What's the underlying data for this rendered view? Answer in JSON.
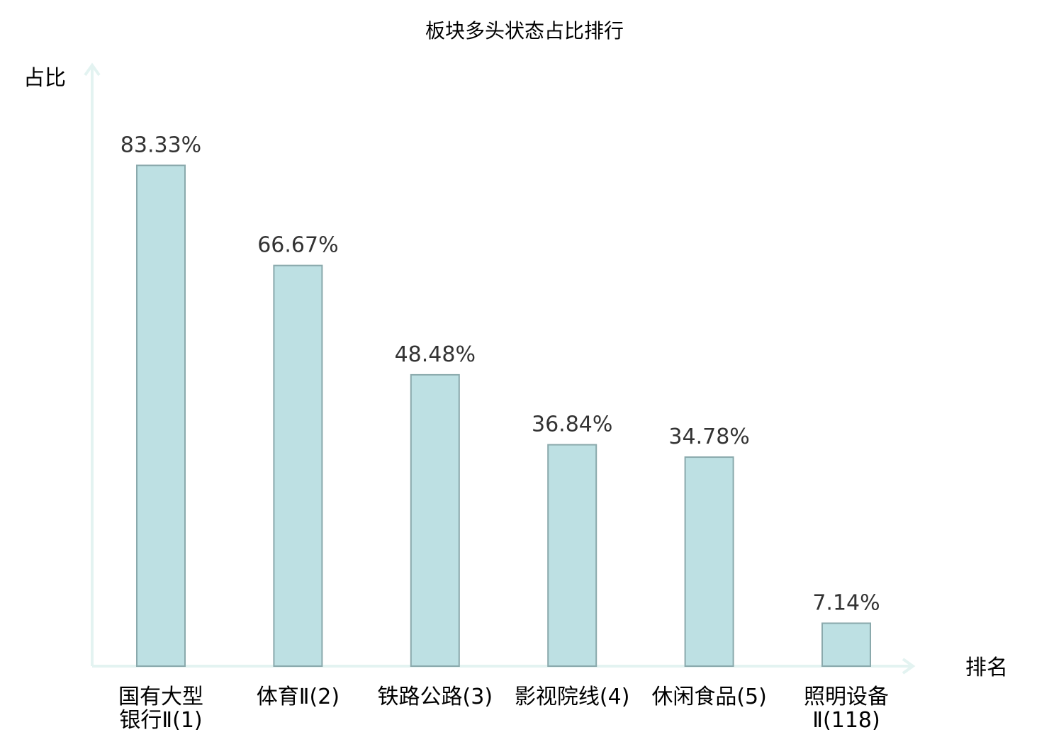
{
  "chart_data": {
    "type": "bar",
    "title": "板块多头状态占比排行",
    "ylabel": "占比",
    "xlabel": "排名",
    "ylim": [
      0,
      100
    ],
    "grid": false,
    "categories": [
      [
        "国有大型",
        "银行Ⅱ(1)"
      ],
      [
        "体育Ⅱ(2)"
      ],
      [
        "铁路公路(3)"
      ],
      [
        "影视院线(4)"
      ],
      [
        "休闲食品(5)"
      ],
      [
        "照明设备",
        "Ⅱ(118)"
      ]
    ],
    "values": [
      83.33,
      66.67,
      48.48,
      36.84,
      34.78,
      7.14
    ],
    "value_labels": [
      "83.33%",
      "66.67%",
      "48.48%",
      "36.84%",
      "34.78%",
      "7.14%"
    ],
    "highlight_index": 5,
    "colors": {
      "bar_fill": "#bde0e3",
      "bar_stroke": "#8aa9ac",
      "axis": "#e3f3f1",
      "highlight_label": "#e02020",
      "value_text": "#333333"
    }
  }
}
